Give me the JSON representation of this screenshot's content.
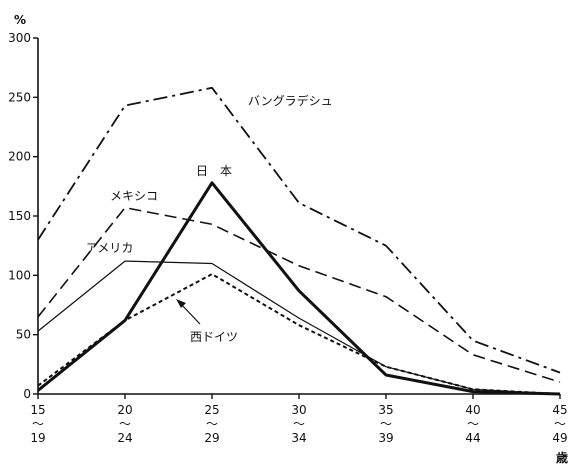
{
  "chart_data": {
    "type": "line",
    "y_unit": "%",
    "x_unit": "歳",
    "ylim": [
      0,
      300
    ],
    "y_ticks": [
      0,
      50,
      100,
      150,
      200,
      250,
      300
    ],
    "categories": [
      {
        "top": "15",
        "mid": "〜",
        "bottom": "19"
      },
      {
        "top": "20",
        "mid": "〜",
        "bottom": "24"
      },
      {
        "top": "25",
        "mid": "〜",
        "bottom": "29"
      },
      {
        "top": "30",
        "mid": "〜",
        "bottom": "34"
      },
      {
        "top": "35",
        "mid": "〜",
        "bottom": "39"
      },
      {
        "top": "40",
        "mid": "〜",
        "bottom": "44"
      },
      {
        "top": "45",
        "mid": "〜",
        "bottom": "49"
      }
    ],
    "series": [
      {
        "name": "バングラデシュ",
        "style": "dashdot",
        "values": [
          130,
          243,
          258,
          161,
          125,
          45,
          18
        ]
      },
      {
        "name": "メキシコ",
        "style": "dashed",
        "values": [
          65,
          157,
          143,
          108,
          82,
          33,
          10
        ]
      },
      {
        "name": "日　本",
        "style": "bold",
        "values": [
          3,
          62,
          178,
          87,
          16,
          2,
          0
        ]
      },
      {
        "name": "アメリカ",
        "style": "thin",
        "values": [
          53,
          112,
          110,
          64,
          23,
          4,
          0
        ]
      },
      {
        "name": "西ドイツ",
        "style": "dotted",
        "values": [
          7,
          62,
          101,
          58,
          23,
          4,
          0
        ]
      }
    ],
    "grid": false,
    "legend": "inline labels"
  }
}
